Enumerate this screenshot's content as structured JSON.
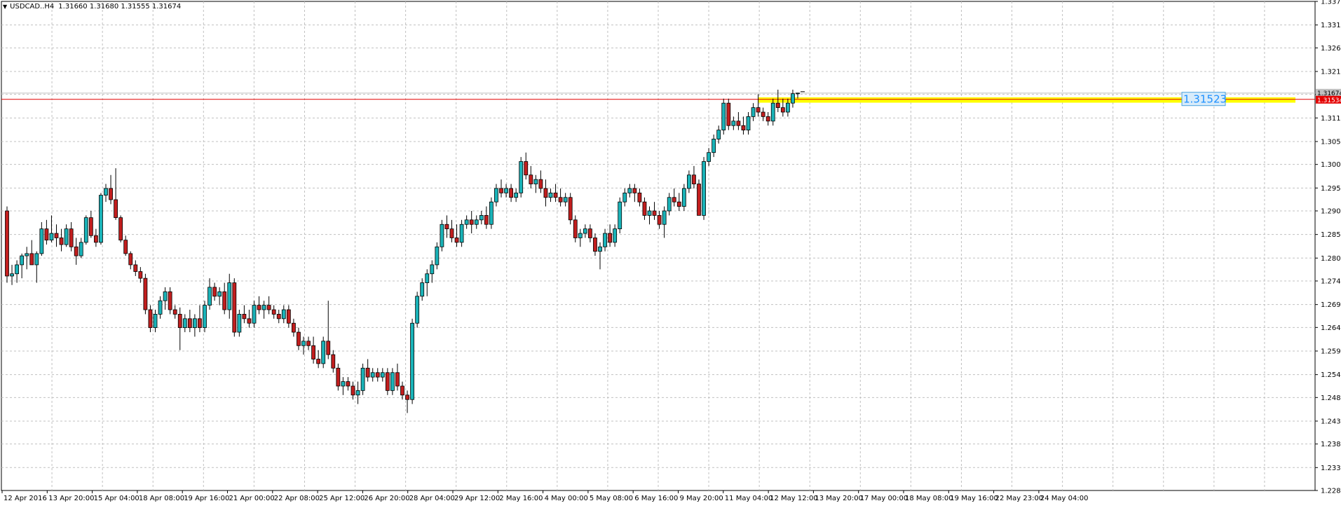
{
  "header": {
    "collapse_icon": "triangle-down-icon",
    "symbol": "USDCAD..H4",
    "ohlc": "1.31660 1.31680 1.31555 1.31674"
  },
  "colors": {
    "grid": "#c0c0c0",
    "bull_body": "#1ab3b8",
    "bear_body": "#c21e1e",
    "candle_outline": "#000000",
    "price_line": "#e40000",
    "highlight_band": "#ffff00",
    "price_box_fill": "#d9ecfa",
    "price_box_text": "#1e90ff",
    "current_price_tag": "#c0c0c0",
    "line_price_tag": "#e40000"
  },
  "chart_data": {
    "type": "candlestick",
    "y_range": [
      1.22825,
      1.33715
    ],
    "y_ticks": [
      "1.33715",
      "1.33190",
      "1.32680",
      "1.32155",
      "1.31645",
      "1.31120",
      "1.30595",
      "1.30085",
      "1.29560",
      "1.29050",
      "1.28525",
      "1.28000",
      "1.27490",
      "1.26965",
      "1.26455",
      "1.25930",
      "1.25405",
      "1.24895",
      "1.24370",
      "1.23860",
      "1.23335",
      "1.22825"
    ],
    "x_labels": [
      "12 Apr 2016",
      "13 Apr 20:00",
      "15 Apr 04:00",
      "18 Apr 08:00",
      "19 Apr 16:00",
      "21 Apr 00:00",
      "22 Apr 08:00",
      "25 Apr 12:00",
      "26 Apr 20:00",
      "28 Apr 04:00",
      "29 Apr 12:00",
      "2 May 16:00",
      "4 May 00:00",
      "5 May 08:00",
      "6 May 16:00",
      "9 May 20:00",
      "11 May 04:00",
      "12 May 12:00",
      "13 May 20:00",
      "17 May 00:00",
      "18 May 08:00",
      "19 May 16:00",
      "22 May 23:00",
      "24 May 04:00"
    ],
    "current_price": "1.31674",
    "horizontal_line_price": "1.31534",
    "highlight_label": "1.31523",
    "candles": [
      [
        1.2905,
        1.2915,
        1.2745,
        1.276
      ],
      [
        1.276,
        1.2785,
        1.274,
        1.2765
      ],
      [
        1.2765,
        1.2795,
        1.2745,
        1.2785
      ],
      [
        1.2785,
        1.281,
        1.2755,
        1.2805
      ],
      [
        1.2805,
        1.2825,
        1.2775,
        1.281
      ],
      [
        1.281,
        1.284,
        1.2795,
        1.2785
      ],
      [
        1.2785,
        1.2815,
        1.2745,
        1.281
      ],
      [
        1.281,
        1.288,
        1.2805,
        1.2865
      ],
      [
        1.2865,
        1.2885,
        1.283,
        1.284
      ],
      [
        1.284,
        1.2895,
        1.2835,
        1.2855
      ],
      [
        1.2855,
        1.2875,
        1.2825,
        1.2845
      ],
      [
        1.2845,
        1.2865,
        1.2815,
        1.283
      ],
      [
        1.283,
        1.2875,
        1.2825,
        1.2865
      ],
      [
        1.2865,
        1.288,
        1.2815,
        1.2825
      ],
      [
        1.2825,
        1.2845,
        1.2785,
        1.2805
      ],
      [
        1.2805,
        1.2845,
        1.28,
        1.2835
      ],
      [
        1.2835,
        1.2895,
        1.283,
        1.289
      ],
      [
        1.289,
        1.2905,
        1.2845,
        1.285
      ],
      [
        1.285,
        1.2865,
        1.2825,
        1.2835
      ],
      [
        1.2835,
        1.2945,
        1.283,
        1.294
      ],
      [
        1.294,
        1.2965,
        1.2925,
        1.2955
      ],
      [
        1.2955,
        1.2985,
        1.292,
        1.293
      ],
      [
        1.293,
        1.3,
        1.2885,
        1.289
      ],
      [
        1.289,
        1.2895,
        1.2835,
        1.284
      ],
      [
        1.284,
        1.285,
        1.2805,
        1.281
      ],
      [
        1.281,
        1.2815,
        1.2775,
        1.2785
      ],
      [
        1.2785,
        1.2795,
        1.276,
        1.277
      ],
      [
        1.277,
        1.278,
        1.2745,
        1.2755
      ],
      [
        1.2755,
        1.2765,
        1.2675,
        1.2685
      ],
      [
        1.2685,
        1.2695,
        1.2635,
        1.2645
      ],
      [
        1.2645,
        1.2685,
        1.2635,
        1.2675
      ],
      [
        1.2675,
        1.2715,
        1.2665,
        1.2705
      ],
      [
        1.2705,
        1.2735,
        1.2685,
        1.2725
      ],
      [
        1.2725,
        1.2735,
        1.2675,
        1.2685
      ],
      [
        1.2685,
        1.2695,
        1.2665,
        1.2675
      ],
      [
        1.2675,
        1.269,
        1.2595,
        1.2645
      ],
      [
        1.2645,
        1.2675,
        1.2635,
        1.2665
      ],
      [
        1.2665,
        1.2685,
        1.2635,
        1.2645
      ],
      [
        1.2645,
        1.2675,
        1.2625,
        1.2665
      ],
      [
        1.2665,
        1.2695,
        1.2635,
        1.2645
      ],
      [
        1.2645,
        1.2705,
        1.2635,
        1.2695
      ],
      [
        1.2695,
        1.2755,
        1.2685,
        1.2735
      ],
      [
        1.2735,
        1.2745,
        1.2705,
        1.2715
      ],
      [
        1.2715,
        1.2735,
        1.2695,
        1.2725
      ],
      [
        1.2725,
        1.2745,
        1.2675,
        1.2685
      ],
      [
        1.2685,
        1.2765,
        1.2665,
        1.2745
      ],
      [
        1.2745,
        1.2755,
        1.2625,
        1.2635
      ],
      [
        1.2635,
        1.2685,
        1.2625,
        1.2675
      ],
      [
        1.2675,
        1.2695,
        1.2655,
        1.2665
      ],
      [
        1.2665,
        1.2685,
        1.2645,
        1.2655
      ],
      [
        1.2655,
        1.2705,
        1.2645,
        1.2695
      ],
      [
        1.2695,
        1.2715,
        1.2675,
        1.2685
      ],
      [
        1.2685,
        1.2705,
        1.2665,
        1.2695
      ],
      [
        1.2695,
        1.2715,
        1.2675,
        1.2685
      ],
      [
        1.2685,
        1.2695,
        1.2665,
        1.2675
      ],
      [
        1.2675,
        1.2685,
        1.2655,
        1.2665
      ],
      [
        1.2665,
        1.2695,
        1.2655,
        1.2685
      ],
      [
        1.2685,
        1.2695,
        1.2645,
        1.2655
      ],
      [
        1.2655,
        1.2665,
        1.2625,
        1.2635
      ],
      [
        1.2635,
        1.2645,
        1.2595,
        1.2605
      ],
      [
        1.2605,
        1.2625,
        1.2585,
        1.2615
      ],
      [
        1.2615,
        1.2625,
        1.2595,
        1.2605
      ],
      [
        1.2605,
        1.2625,
        1.2565,
        1.2575
      ],
      [
        1.2575,
        1.2595,
        1.2555,
        1.2565
      ],
      [
        1.2565,
        1.2625,
        1.2555,
        1.2615
      ],
      [
        1.2615,
        1.2705,
        1.2575,
        1.2585
      ],
      [
        1.2585,
        1.2595,
        1.2545,
        1.2555
      ],
      [
        1.2555,
        1.2565,
        1.2505,
        1.2515
      ],
      [
        1.2515,
        1.2535,
        1.2495,
        1.2525
      ],
      [
        1.2525,
        1.2535,
        1.2505,
        1.2515
      ],
      [
        1.2515,
        1.2525,
        1.2485,
        1.2495
      ],
      [
        1.2495,
        1.2525,
        1.2475,
        1.2505
      ],
      [
        1.2505,
        1.2565,
        1.2495,
        1.2555
      ],
      [
        1.2555,
        1.2575,
        1.2525,
        1.2535
      ],
      [
        1.2535,
        1.2555,
        1.2525,
        1.2545
      ],
      [
        1.2545,
        1.2555,
        1.2525,
        1.2535
      ],
      [
        1.2535,
        1.2555,
        1.2525,
        1.2545
      ],
      [
        1.2545,
        1.2555,
        1.2495,
        1.2505
      ],
      [
        1.2505,
        1.2555,
        1.2495,
        1.2545
      ],
      [
        1.2545,
        1.2565,
        1.2505,
        1.2515
      ],
      [
        1.2515,
        1.2525,
        1.2485,
        1.2495
      ],
      [
        1.2495,
        1.2505,
        1.2455,
        1.2485
      ],
      [
        1.2485,
        1.2665,
        1.2475,
        1.2655
      ],
      [
        1.2655,
        1.2725,
        1.2645,
        1.2715
      ],
      [
        1.2715,
        1.2755,
        1.2705,
        1.2745
      ],
      [
        1.2745,
        1.2775,
        1.2715,
        1.2765
      ],
      [
        1.2765,
        1.2795,
        1.2745,
        1.2785
      ],
      [
        1.2785,
        1.2835,
        1.2775,
        1.2825
      ],
      [
        1.2825,
        1.2885,
        1.2815,
        1.2875
      ],
      [
        1.2875,
        1.2895,
        1.2845,
        1.2865
      ],
      [
        1.2865,
        1.2885,
        1.2835,
        1.2845
      ],
      [
        1.2845,
        1.2875,
        1.2825,
        1.2835
      ],
      [
        1.2835,
        1.2885,
        1.2825,
        1.2875
      ],
      [
        1.2875,
        1.2895,
        1.2865,
        1.2885
      ],
      [
        1.2885,
        1.2905,
        1.2855,
        1.2875
      ],
      [
        1.2875,
        1.2895,
        1.2865,
        1.2885
      ],
      [
        1.2885,
        1.2905,
        1.2875,
        1.2895
      ],
      [
        1.2895,
        1.2915,
        1.2865,
        1.2875
      ],
      [
        1.2875,
        1.2935,
        1.2865,
        1.2925
      ],
      [
        1.2925,
        1.2965,
        1.2915,
        1.2955
      ],
      [
        1.2955,
        1.2975,
        1.2935,
        1.2945
      ],
      [
        1.2945,
        1.2965,
        1.2935,
        1.2955
      ],
      [
        1.2955,
        1.2965,
        1.2925,
        1.2935
      ],
      [
        1.2935,
        1.2955,
        1.2925,
        1.2945
      ],
      [
        1.2945,
        1.3025,
        1.2935,
        1.3015
      ],
      [
        1.3015,
        1.3035,
        1.2975,
        1.2985
      ],
      [
        1.2985,
        1.3005,
        1.2955,
        1.2965
      ],
      [
        1.2965,
        1.2985,
        1.2945,
        1.2975
      ],
      [
        1.2975,
        1.2995,
        1.2945,
        1.2955
      ],
      [
        1.2955,
        1.2975,
        1.2915,
        1.2935
      ],
      [
        1.2935,
        1.2955,
        1.2925,
        1.2945
      ],
      [
        1.2945,
        1.2965,
        1.2925,
        1.2935
      ],
      [
        1.2935,
        1.2955,
        1.2915,
        1.2925
      ],
      [
        1.2925,
        1.2945,
        1.2915,
        1.2935
      ],
      [
        1.2935,
        1.2945,
        1.2875,
        1.2885
      ],
      [
        1.2885,
        1.2895,
        1.2835,
        1.2845
      ],
      [
        1.2845,
        1.2865,
        1.2825,
        1.2855
      ],
      [
        1.2855,
        1.2875,
        1.2845,
        1.2865
      ],
      [
        1.2865,
        1.2875,
        1.2835,
        1.2845
      ],
      [
        1.2845,
        1.2855,
        1.2805,
        1.2815
      ],
      [
        1.2815,
        1.2835,
        1.2775,
        1.2825
      ],
      [
        1.2825,
        1.2865,
        1.2815,
        1.2855
      ],
      [
        1.2855,
        1.2875,
        1.2825,
        1.2835
      ],
      [
        1.2835,
        1.2875,
        1.2825,
        1.2865
      ],
      [
        1.2865,
        1.2935,
        1.2855,
        1.2925
      ],
      [
        1.2925,
        1.2955,
        1.2915,
        1.2945
      ],
      [
        1.2945,
        1.2965,
        1.2935,
        1.2955
      ],
      [
        1.2955,
        1.2965,
        1.2925,
        1.2945
      ],
      [
        1.2945,
        1.2955,
        1.2915,
        1.2925
      ],
      [
        1.2925,
        1.2935,
        1.2885,
        1.2895
      ],
      [
        1.2895,
        1.2915,
        1.2875,
        1.2905
      ],
      [
        1.2905,
        1.2925,
        1.2885,
        1.2895
      ],
      [
        1.2895,
        1.2905,
        1.2865,
        1.2875
      ],
      [
        1.2875,
        1.2915,
        1.2845,
        1.2905
      ],
      [
        1.2905,
        1.2945,
        1.2895,
        1.2935
      ],
      [
        1.2935,
        1.2955,
        1.2915,
        1.2925
      ],
      [
        1.2925,
        1.2945,
        1.2905,
        1.2915
      ],
      [
        1.2915,
        1.2965,
        1.2905,
        1.2955
      ],
      [
        1.2955,
        1.2995,
        1.2945,
        1.2985
      ],
      [
        1.2985,
        1.3005,
        1.2955,
        1.2965
      ],
      [
        1.2965,
        1.2975,
        1.2895,
        1.2895
      ],
      [
        1.2895,
        1.3025,
        1.2885,
        1.3015
      ],
      [
        1.3015,
        1.3045,
        1.3005,
        1.3035
      ],
      [
        1.3035,
        1.3075,
        1.3025,
        1.3065
      ],
      [
        1.3065,
        1.3095,
        1.3055,
        1.3085
      ],
      [
        1.3085,
        1.3155,
        1.3075,
        1.3145
      ],
      [
        1.3145,
        1.3155,
        1.3085,
        1.3095
      ],
      [
        1.3095,
        1.3115,
        1.3085,
        1.3105
      ],
      [
        1.3105,
        1.3125,
        1.3085,
        1.3095
      ],
      [
        1.3095,
        1.3115,
        1.3075,
        1.3085
      ],
      [
        1.3085,
        1.3125,
        1.3075,
        1.3115
      ],
      [
        1.3115,
        1.3145,
        1.3105,
        1.3135
      ],
      [
        1.3135,
        1.3165,
        1.3115,
        1.3125
      ],
      [
        1.3125,
        1.3135,
        1.3105,
        1.3115
      ],
      [
        1.3115,
        1.3125,
        1.3095,
        1.3105
      ],
      [
        1.3105,
        1.3155,
        1.3095,
        1.3145
      ],
      [
        1.3145,
        1.3175,
        1.3125,
        1.3135
      ],
      [
        1.3135,
        1.3155,
        1.3115,
        1.3125
      ],
      [
        1.3125,
        1.3155,
        1.3115,
        1.3145
      ],
      [
        1.3145,
        1.3175,
        1.3135,
        1.3166
      ],
      [
        1.3166,
        1.3168,
        1.31555,
        1.31674
      ]
    ]
  }
}
